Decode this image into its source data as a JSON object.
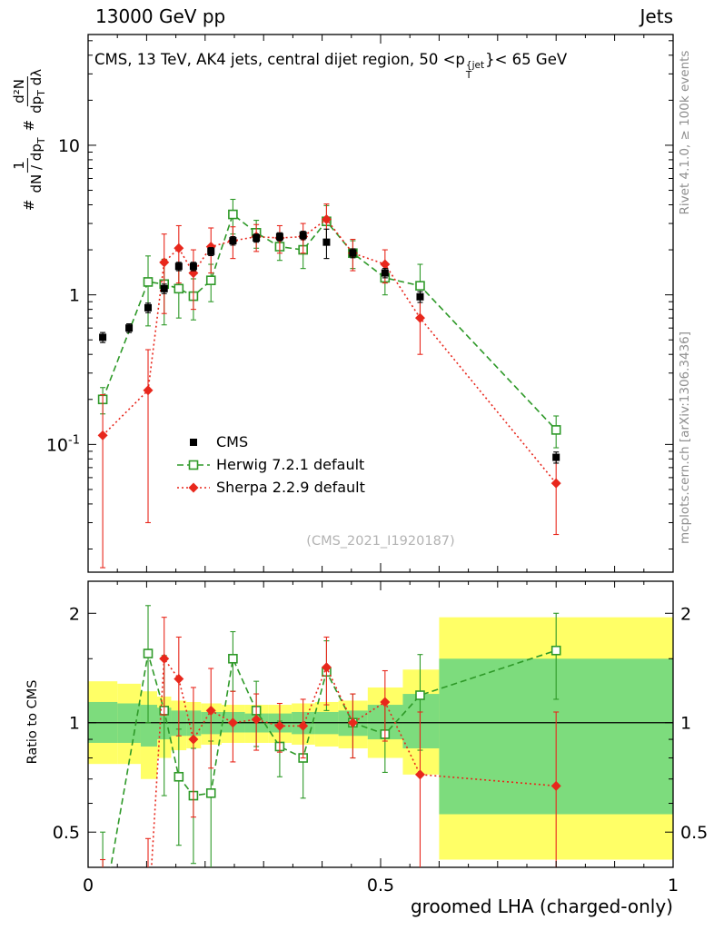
{
  "header": {
    "left": "13000 GeV pp",
    "right": "Jets"
  },
  "panel_title": {
    "t1": "CMS, 13 TeV, AK4 jets, central dijet region, 50 <p",
    "sup": "{jet",
    "sub": "T",
    "t2": "}< 65 GeV"
  },
  "ylabel": {
    "hash1": "#",
    "f1num": "1",
    "f1den_a": "dN / dp",
    "f1den_sub": "T",
    "hash2": "#",
    "f2num": "d²N",
    "f2den_a": "dp",
    "f2den_sub": "T",
    "f2den_b": " dλ"
  },
  "axis": {
    "x_title": "groomed LHA (charged-only)",
    "ratio_title": "Ratio to CMS"
  },
  "side_labels": {
    "rivet": "Rivet 4.1.0, ≥ 100k events",
    "mcplots": "mcplots.cern.ch [arXiv:1306.3436]"
  },
  "watermark": {
    "text": "(CMS_2021_I1920187)"
  },
  "legend": {
    "items": [
      {
        "label": "CMS"
      },
      {
        "label": "Herwig 7.2.1 default"
      },
      {
        "label": "Sherpa 2.2.9 default"
      }
    ]
  },
  "chart_data": {
    "type": "line",
    "title": "CMS, 13 TeV, AK4 jets, central dijet region, 50 < pT{jet} < 65 GeV",
    "xlabel": "groomed LHA (charged-only)",
    "ylabel": "# 1/(dN/dp_T) d2N/(dp_T dlambda)",
    "ratio_label": "Ratio to CMS",
    "xlim": [
      0,
      1
    ],
    "ylim_main": [
      0.014,
      55
    ],
    "ylim_ratio": [
      0.4,
      2.45
    ],
    "x_ticks": {
      "major": [
        0,
        0.5,
        1
      ],
      "labels": [
        "0",
        "0.5",
        "1"
      ]
    },
    "y_ticks_main": {
      "major": [
        0.1,
        1,
        10
      ],
      "labels": [
        {
          "base": "10",
          "exp": "-1"
        },
        {
          "base": "1"
        },
        {
          "base": "10"
        }
      ]
    },
    "y_ticks_ratio": {
      "major": [
        0.5,
        1,
        2
      ],
      "labels": [
        "0.5",
        "1",
        "2"
      ],
      "minor": [
        0.6,
        0.7,
        0.8,
        0.9,
        1.5
      ]
    },
    "ratio_line": 1,
    "x": [
      0.025,
      0.07,
      0.1025,
      0.13,
      0.155,
      0.18,
      0.21,
      0.2475,
      0.2875,
      0.3275,
      0.3675,
      0.4075,
      0.4525,
      0.5075,
      0.5675,
      0.8
    ],
    "series": [
      {
        "name": "CMS",
        "color": "#000000",
        "marker": "square-filled",
        "line": "none",
        "values": [
          0.52,
          0.6,
          0.82,
          1.1,
          1.55,
          1.55,
          1.95,
          2.3,
          2.4,
          2.45,
          2.5,
          2.25,
          1.9,
          1.4,
          0.97,
          0.082
        ],
        "errors": [
          0.04,
          0.04,
          0.06,
          0.08,
          0.1,
          0.1,
          0.12,
          0.15,
          0.15,
          0.15,
          0.16,
          0.5,
          0.13,
          0.1,
          0.08,
          0.007
        ]
      },
      {
        "name": "Herwig 7.2.1 default",
        "color": "#2e9928",
        "marker": "square-open",
        "line": "dashed",
        "values": [
          0.2,
          null,
          1.22,
          1.18,
          1.1,
          0.98,
          1.25,
          3.45,
          2.6,
          2.1,
          2.0,
          3.1,
          1.9,
          1.3,
          1.15,
          0.125
        ],
        "errors": [
          0.04,
          null,
          0.6,
          0.55,
          0.4,
          0.3,
          0.35,
          0.9,
          0.55,
          0.4,
          0.5,
          0.85,
          0.4,
          0.3,
          0.45,
          0.03
        ],
        "ratio": [
          0.3,
          null,
          1.55,
          1.08,
          0.71,
          0.63,
          0.64,
          1.5,
          1.08,
          0.86,
          0.8,
          1.38,
          1.0,
          0.93,
          1.19,
          1.58
        ],
        "ratio_errors": [
          0.2,
          null,
          0.55,
          0.45,
          0.25,
          0.22,
          0.25,
          0.28,
          0.22,
          0.15,
          0.18,
          0.3,
          0.2,
          0.2,
          0.35,
          0.42
        ]
      },
      {
        "name": "Sherpa 2.2.9 default",
        "color": "#e8271c",
        "marker": "diamond-filled",
        "line": "dotted",
        "values": [
          0.115,
          null,
          0.23,
          1.65,
          2.05,
          1.4,
          2.1,
          2.3,
          2.45,
          2.4,
          2.45,
          3.2,
          1.9,
          1.6,
          0.7,
          0.055
        ],
        "errors": [
          0.1,
          null,
          0.2,
          0.9,
          0.85,
          0.6,
          0.7,
          0.55,
          0.5,
          0.5,
          0.55,
          0.85,
          0.45,
          0.4,
          0.3,
          0.03
        ],
        "ratio": [
          0.22,
          null,
          0.28,
          1.5,
          1.32,
          0.9,
          1.08,
          1.0,
          1.02,
          0.98,
          0.98,
          1.42,
          1.0,
          1.14,
          0.72,
          0.67
        ],
        "ratio_errors": [
          0.2,
          null,
          0.2,
          0.45,
          0.4,
          0.35,
          0.33,
          0.22,
          0.18,
          0.15,
          0.18,
          0.3,
          0.2,
          0.25,
          0.35,
          0.4
        ]
      }
    ],
    "bands": {
      "edges": [
        0,
        0.05,
        0.09,
        0.118,
        0.142,
        0.168,
        0.193,
        0.228,
        0.268,
        0.308,
        0.348,
        0.388,
        0.428,
        0.478,
        0.538,
        0.6,
        1.0
      ],
      "yellow": [
        [
          0.77,
          1.3
        ],
        [
          0.77,
          1.28
        ],
        [
          0.7,
          1.22
        ],
        [
          0.8,
          1.18
        ],
        [
          0.84,
          1.15
        ],
        [
          0.85,
          1.14
        ],
        [
          0.87,
          1.13
        ],
        [
          0.88,
          1.12
        ],
        [
          0.88,
          1.12
        ],
        [
          0.88,
          1.12
        ],
        [
          0.87,
          1.13
        ],
        [
          0.86,
          1.14
        ],
        [
          0.85,
          1.15
        ],
        [
          0.8,
          1.25
        ],
        [
          0.72,
          1.4
        ],
        [
          0.42,
          1.95
        ]
      ],
      "green": [
        [
          0.88,
          1.14
        ],
        [
          0.88,
          1.13
        ],
        [
          0.86,
          1.12
        ],
        [
          0.9,
          1.1
        ],
        [
          0.92,
          1.08
        ],
        [
          0.92,
          1.08
        ],
        [
          0.93,
          1.07
        ],
        [
          0.94,
          1.07
        ],
        [
          0.94,
          1.06
        ],
        [
          0.94,
          1.06
        ],
        [
          0.93,
          1.07
        ],
        [
          0.93,
          1.07
        ],
        [
          0.92,
          1.08
        ],
        [
          0.9,
          1.12
        ],
        [
          0.85,
          1.2
        ],
        [
          0.56,
          1.5
        ]
      ],
      "yellow_color": "#ffff66",
      "green_color": "#7ddc7d"
    },
    "legend_position": "center-left",
    "grid": false
  }
}
